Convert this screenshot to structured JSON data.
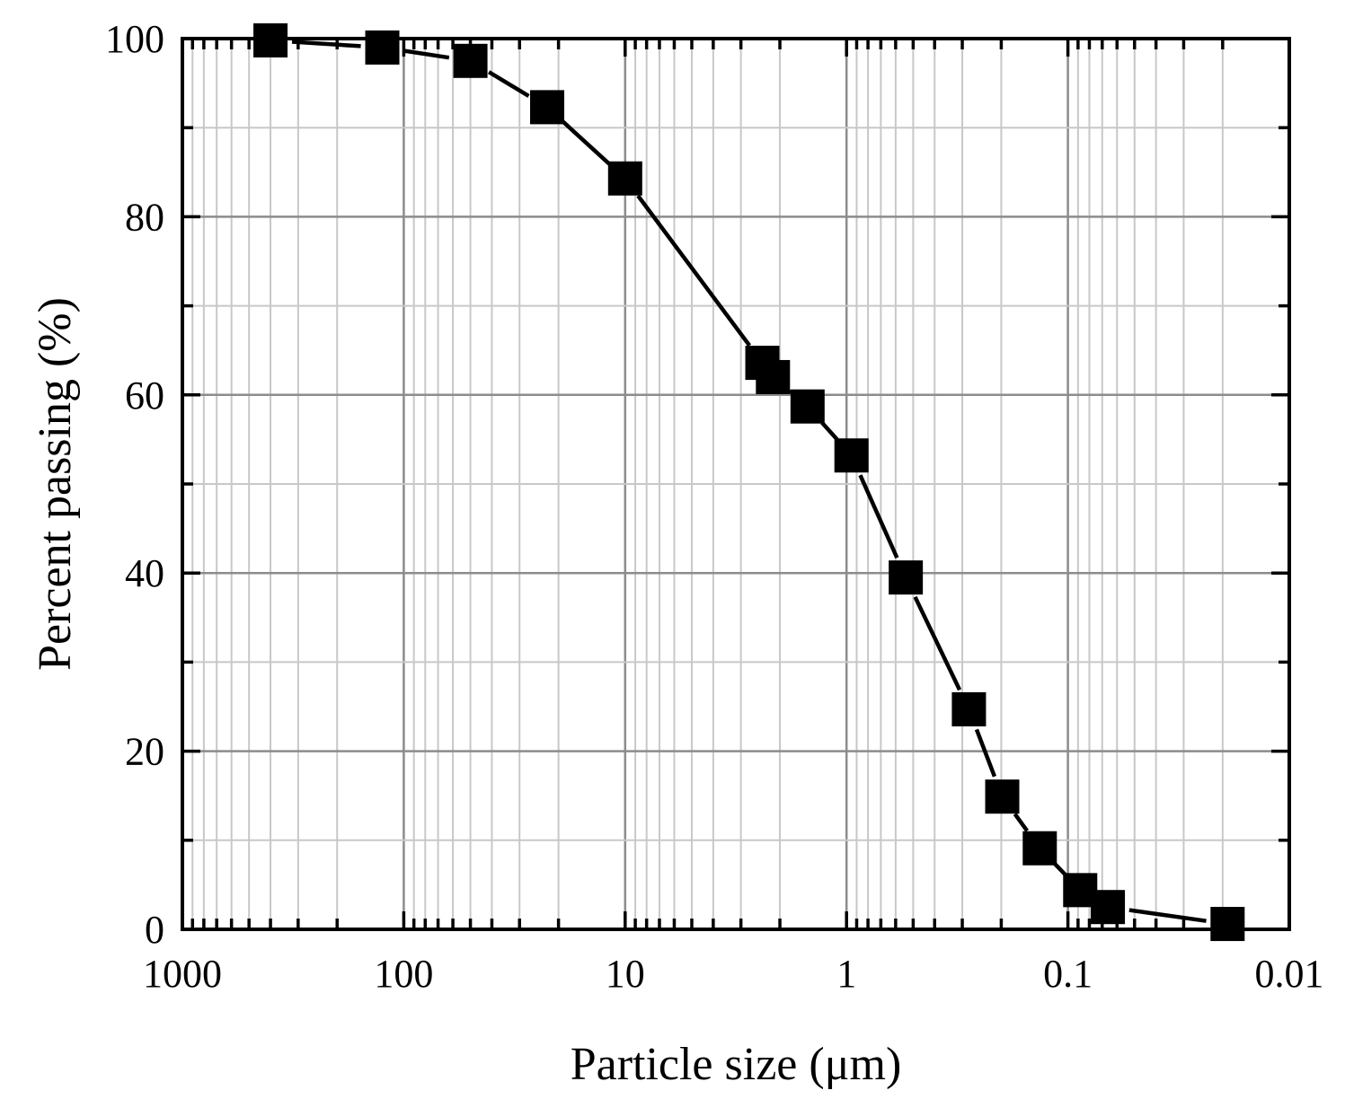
{
  "chart_data": {
    "type": "line",
    "title": "",
    "xlabel": "Particle size (μm)",
    "ylabel": "Percent passing (%)",
    "x_scale": "log",
    "x_reversed": true,
    "xlim": [
      1000,
      0.01
    ],
    "ylim": [
      0,
      100
    ],
    "x_ticks": [
      1000,
      100,
      10,
      1,
      0.1,
      0.01
    ],
    "x_tick_labels": [
      "1000",
      "100",
      "10",
      "1",
      "0.1",
      "0.01"
    ],
    "y_ticks": [
      0,
      20,
      40,
      60,
      80,
      100
    ],
    "y_tick_labels": [
      "0",
      "20",
      "40",
      "60",
      "80",
      "100"
    ],
    "grid": true,
    "marker": "square",
    "color": "#000000",
    "series": [
      {
        "x": [
          400,
          125,
          50,
          22.5,
          10,
          2.4,
          2.15,
          1.5,
          0.95,
          0.54,
          0.28,
          0.198,
          0.134,
          0.088,
          0.066,
          0.019
        ],
        "y": [
          99.8,
          99,
          97.5,
          92.3,
          84.3,
          63.6,
          62,
          58.7,
          53.2,
          39.5,
          24.7,
          14.9,
          9.1,
          4.4,
          2.5,
          0.6
        ]
      }
    ]
  }
}
